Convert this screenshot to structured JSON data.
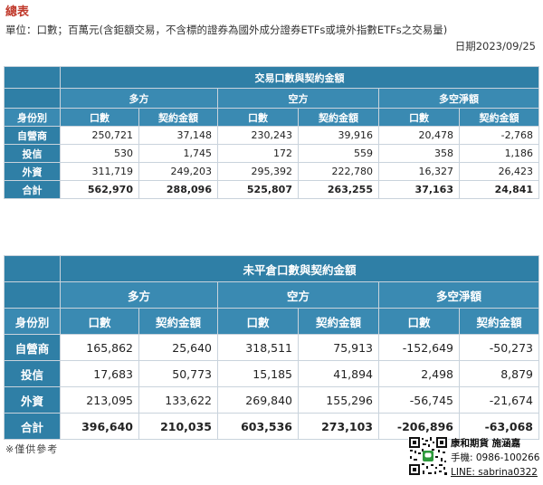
{
  "title": "總表",
  "unit_note": "單位：口數；百萬元(含鉅額交易，不含標的證券為國外成分證券ETFs或境外指數ETFs之交易量)",
  "date_text": "日期2023/09/25",
  "table1": {
    "caption": "交易口數與契約金額",
    "groups": [
      "多方",
      "空方",
      "多空淨額"
    ],
    "col_identity": "身份別",
    "col_lots": "口數",
    "col_amount": "契約金額",
    "rows": [
      {
        "label": "自營商",
        "values": [
          "250,721",
          "37,148",
          "230,243",
          "39,916",
          "20,478",
          "-2,768"
        ]
      },
      {
        "label": "投信",
        "values": [
          "530",
          "1,745",
          "172",
          "559",
          "358",
          "1,186"
        ]
      },
      {
        "label": "外資",
        "values": [
          "311,719",
          "249,203",
          "295,392",
          "222,780",
          "16,327",
          "26,423"
        ]
      },
      {
        "label": "合計",
        "values": [
          "562,970",
          "288,096",
          "525,807",
          "263,255",
          "37,163",
          "24,841"
        ]
      }
    ]
  },
  "table2": {
    "caption": "未平倉口數與契約金額",
    "groups": [
      "多方",
      "空方",
      "多空淨額"
    ],
    "col_identity": "身份別",
    "col_lots": "口數",
    "col_amount": "契約金額",
    "rows": [
      {
        "label": "自營商",
        "values": [
          "165,862",
          "25,640",
          "318,511",
          "75,913",
          "-152,649",
          "-50,273"
        ]
      },
      {
        "label": "投信",
        "values": [
          "17,683",
          "50,773",
          "15,185",
          "41,894",
          "2,498",
          "8,879"
        ]
      },
      {
        "label": "外資",
        "values": [
          "213,095",
          "133,622",
          "269,840",
          "155,296",
          "-56,745",
          "-21,674"
        ]
      },
      {
        "label": "合計",
        "values": [
          "396,640",
          "210,035",
          "603,536",
          "273,103",
          "-206,896",
          "-63,068"
        ]
      }
    ]
  },
  "footnote": "※僅供參考",
  "contact": {
    "name": "康和期貨 施涵嘉",
    "phone": "手機: 0986-100266",
    "line": "LINE: sabrina0322"
  },
  "colors": {
    "header_bg": "#2f7fa6",
    "title": "#c0392b"
  }
}
